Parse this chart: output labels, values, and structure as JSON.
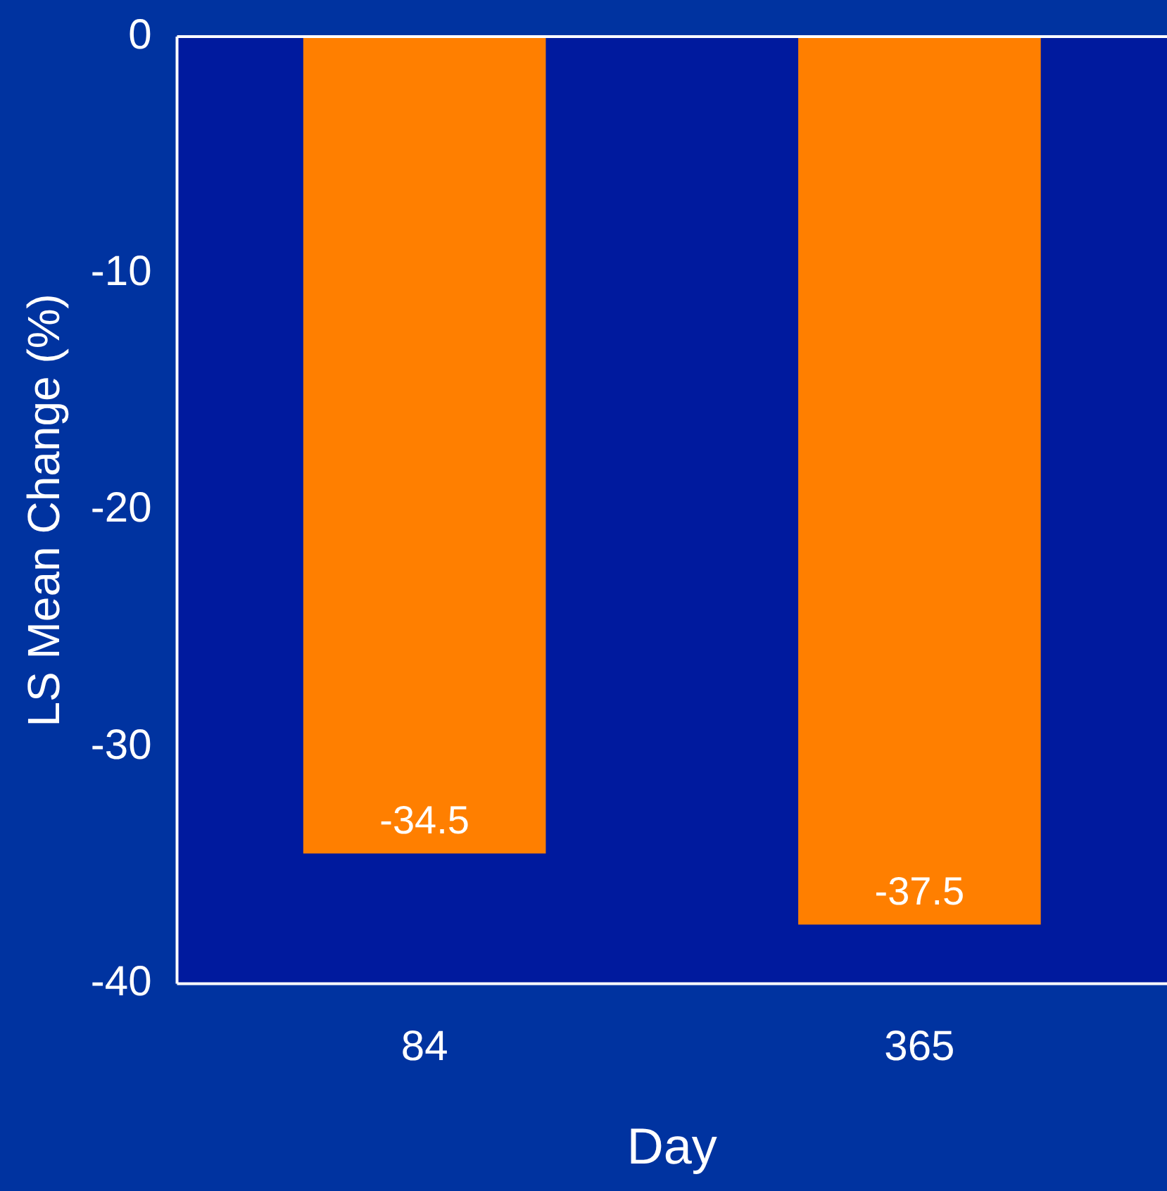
{
  "chart_data": {
    "type": "bar",
    "xlabel": "Day",
    "ylabel": "LS Mean Change (%)",
    "categories": [
      "84",
      "365"
    ],
    "values": [
      -34.5,
      -37.5
    ],
    "color": "#ff7f00",
    "ylim": [
      -40,
      0
    ],
    "yticks": [
      0,
      -10,
      -20,
      -30,
      -40
    ],
    "grid": false,
    "legend": false,
    "data_labels": true
  }
}
